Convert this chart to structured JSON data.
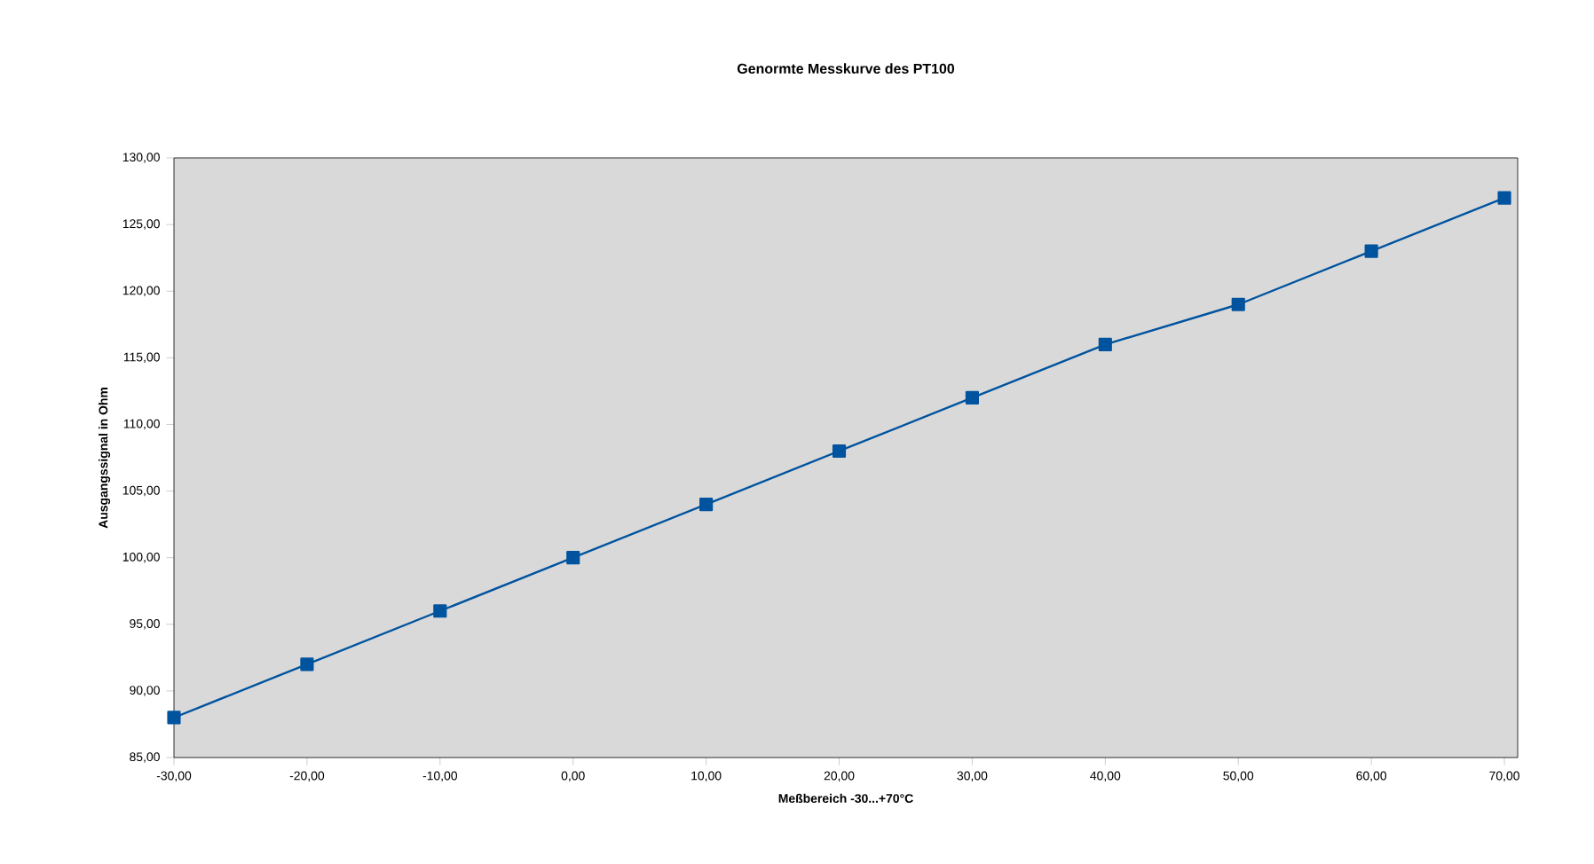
{
  "chart_data": {
    "type": "line",
    "title": "Genormte Messkurve des PT100",
    "xlabel": "Meßbereich -30...+70°C",
    "ylabel": "Ausgangssignal in Ohm",
    "x": [
      -30,
      -20,
      -10,
      0,
      10,
      20,
      30,
      40,
      50,
      60,
      70
    ],
    "series": [
      {
        "color": "#00539f",
        "values": [
          88,
          92,
          96,
          100,
          104,
          108,
          112,
          116,
          119,
          123,
          127
        ]
      }
    ],
    "marker": "square",
    "line_style": "solid",
    "grid": false,
    "xlim": [
      -30,
      71
    ],
    "xticks": [
      {
        "value": -30,
        "label": "-30,00"
      },
      {
        "value": -20,
        "label": "-20,00"
      },
      {
        "value": -10,
        "label": "-10,00"
      },
      {
        "value": 0,
        "label": "0,00"
      },
      {
        "value": 10,
        "label": "10,00"
      },
      {
        "value": 20,
        "label": "20,00"
      },
      {
        "value": 30,
        "label": "30,00"
      },
      {
        "value": 40,
        "label": "40,00"
      },
      {
        "value": 50,
        "label": "50,00"
      },
      {
        "value": 60,
        "label": "60,00"
      },
      {
        "value": 70,
        "label": "70,00"
      }
    ],
    "ylim": [
      85,
      130
    ],
    "yticks": [
      {
        "value": 85,
        "label": "85,00"
      },
      {
        "value": 90,
        "label": "90,00"
      },
      {
        "value": 95,
        "label": "95,00"
      },
      {
        "value": 100,
        "label": "100,00"
      },
      {
        "value": 105,
        "label": "105,00"
      },
      {
        "value": 110,
        "label": "110,00"
      },
      {
        "value": 115,
        "label": "115,00"
      },
      {
        "value": 120,
        "label": "120,00"
      },
      {
        "value": 125,
        "label": "125,00"
      },
      {
        "value": 130,
        "label": "130,00"
      }
    ]
  }
}
